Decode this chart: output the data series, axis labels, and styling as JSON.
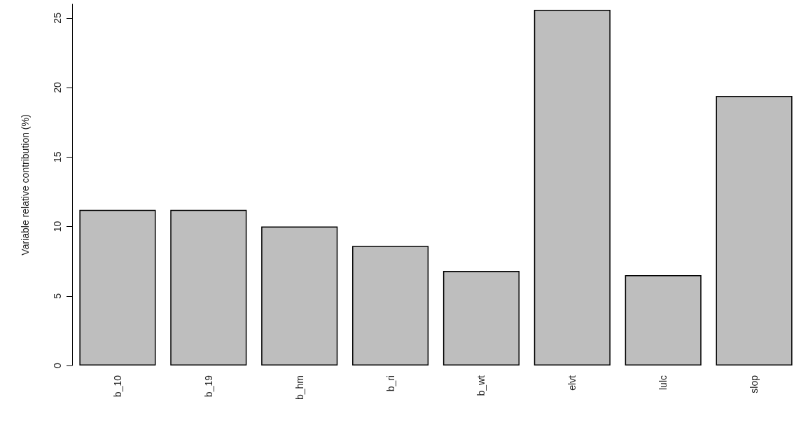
{
  "chart_data": {
    "type": "bar",
    "ylabel": "Variable relative contribution (%)",
    "categories": [
      "b_10",
      "b_19",
      "b_hm",
      "b_ri",
      "b_wt",
      "elvt",
      "lulc",
      "slop"
    ],
    "values": [
      11.2,
      11.2,
      10.0,
      8.6,
      6.8,
      25.6,
      6.5,
      19.4
    ],
    "color": "#bebebe",
    "ylim": [
      0,
      26
    ],
    "yticks": [
      0,
      5,
      10,
      15,
      20,
      25
    ],
    "grid": false
  }
}
